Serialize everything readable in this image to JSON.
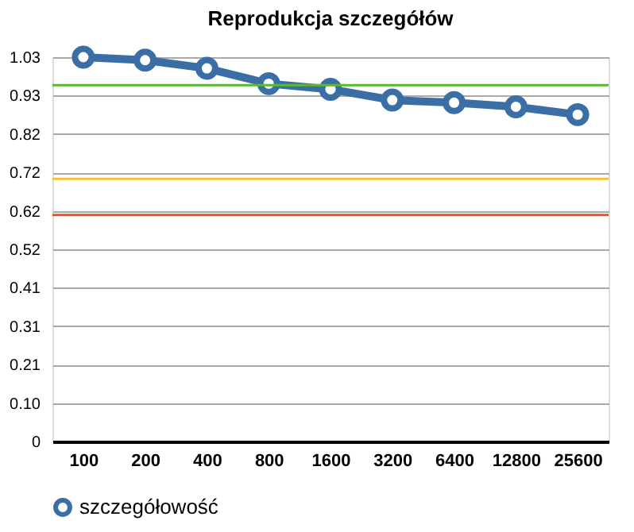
{
  "chart_data": {
    "type": "line",
    "title": "Reprodukcja szczegółów",
    "categories": [
      "100",
      "200",
      "400",
      "800",
      "1600",
      "3200",
      "6400",
      "12800",
      "25600"
    ],
    "series": [
      {
        "name": "szczegółowość",
        "color": "#3a6ea5",
        "values": [
          1.03,
          1.022,
          1.0,
          0.959,
          0.944,
          0.915,
          0.908,
          0.897,
          0.876
        ]
      }
    ],
    "ylim": [
      0,
      1.03
    ],
    "yticks": [
      0,
      {
        "value": 0.103,
        "label": "0.10"
      },
      {
        "value": 0.206,
        "label": "0.21"
      },
      {
        "value": 0.309,
        "label": "0.31"
      },
      {
        "value": 0.412,
        "label": "0.41"
      },
      {
        "value": 0.515,
        "label": "0.52"
      },
      {
        "value": 0.618,
        "label": "0.62"
      },
      {
        "value": 0.721,
        "label": "0.72"
      },
      {
        "value": 0.824,
        "label": "0.82"
      },
      {
        "value": 0.927,
        "label": "0.93"
      },
      {
        "value": 1.03,
        "label": "1.03"
      }
    ],
    "ref_lines": [
      {
        "axis": "y",
        "value": 0.955,
        "color": "#5bb82f"
      },
      {
        "axis": "y",
        "value": 0.704,
        "color": "#f2c230"
      },
      {
        "axis": "y",
        "value": 0.607,
        "color": "#e8502e"
      }
    ],
    "grid": "y",
    "legend": "bottom",
    "marker": "circle",
    "line_style": "solid"
  }
}
